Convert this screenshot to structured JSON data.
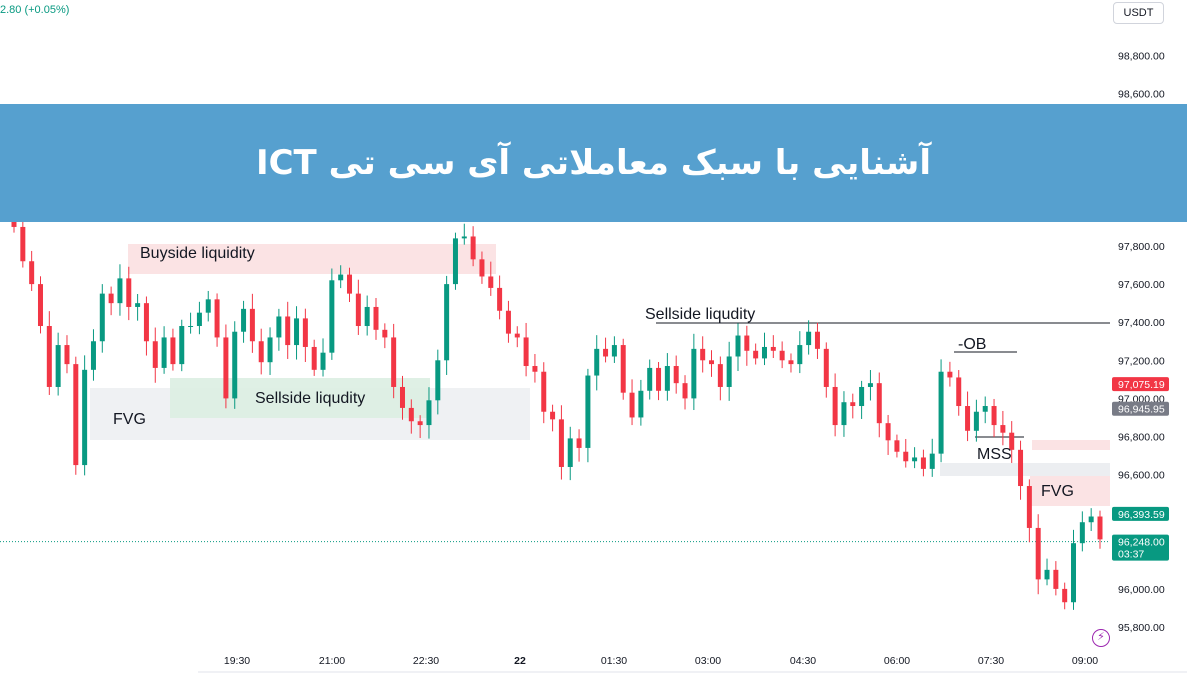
{
  "header": {
    "change_text": "2.80 (+0.05%)",
    "currency": "USDT"
  },
  "banner": {
    "title": "آشنایی با سبک معاملاتی آی سی تی ICT"
  },
  "colors": {
    "up": "#089981",
    "down": "#f23645",
    "banner": "#56a0cf"
  },
  "chart_data": {
    "type": "candlestick",
    "y_range": [
      95700,
      99100
    ],
    "y_ticks": [
      "98,800.00",
      "98,600.00",
      "97,800.00",
      "97,600.00",
      "97,400.00",
      "97,200.00",
      "97,000.00",
      "96,800.00",
      "96,600.00",
      "96,000.00",
      "95,800.00"
    ],
    "y_tick_values": [
      98800,
      98600,
      97800,
      97600,
      97400,
      97200,
      97000,
      96800,
      96600,
      96000,
      95800
    ],
    "x_ticks": [
      "19:30",
      "21:00",
      "22:30",
      "22",
      "01:30",
      "03:00",
      "04:30",
      "06:00",
      "07:30",
      "09:00"
    ],
    "price_labels": [
      {
        "text": "97,075.19",
        "value": 97075.19,
        "color": "#f23645"
      },
      {
        "text": "96,945.95",
        "value": 96945.95,
        "color": "#787b86"
      },
      {
        "text": "96,393.59",
        "value": 96393.59,
        "color": "#089981"
      },
      {
        "text": "96,248.00",
        "value": 96248.0,
        "color": "#089981",
        "sub": "03:37"
      }
    ],
    "current_price": 96248.0,
    "close_prices": [
      97900,
      97720,
      97600,
      97380,
      97060,
      97280,
      97180,
      96650,
      97150,
      97300,
      97550,
      97500,
      97630,
      97480,
      97500,
      97300,
      97160,
      97320,
      97180,
      97380,
      97380,
      97450,
      97520,
      97320,
      97000,
      97350,
      97470,
      97300,
      97190,
      97320,
      97430,
      97280,
      97420,
      97270,
      97150,
      97240,
      97620,
      97650,
      97550,
      97380,
      97480,
      97360,
      97320,
      97060,
      96950,
      96880,
      96860,
      96990,
      97200,
      97600,
      97840,
      97850,
      97730,
      97640,
      97580,
      97460,
      97340,
      97320,
      97170,
      97140,
      96930,
      96890,
      96640,
      96790,
      96740,
      97120,
      97260,
      97220,
      97280,
      97030,
      96900,
      97040,
      97160,
      97040,
      97170,
      97080,
      97000,
      97260,
      97200,
      97180,
      97060,
      97220,
      97330,
      97250,
      97210,
      97270,
      97250,
      97200,
      97180,
      97280,
      97350,
      97260,
      97060,
      96860,
      96980,
      96960,
      97060,
      97080,
      96870,
      96780,
      96720,
      96670,
      96690,
      96630,
      96710,
      97140,
      97110,
      96960,
      96830,
      96930,
      96960,
      96860,
      96820,
      96730,
      96540,
      96320,
      96050,
      96100,
      96000,
      95930,
      96240,
      96350,
      96380,
      96260
    ]
  },
  "annotations": {
    "buyside": "Buyside liquidity",
    "sellside_1": "Sellside liqudity",
    "fvg_1": "FVG",
    "sellside_2": "Sellside liqudity",
    "ob": "-OB",
    "mss": "MSS",
    "fvg_2": "FVG"
  },
  "icons": {
    "lightning": "lightning-icon"
  }
}
